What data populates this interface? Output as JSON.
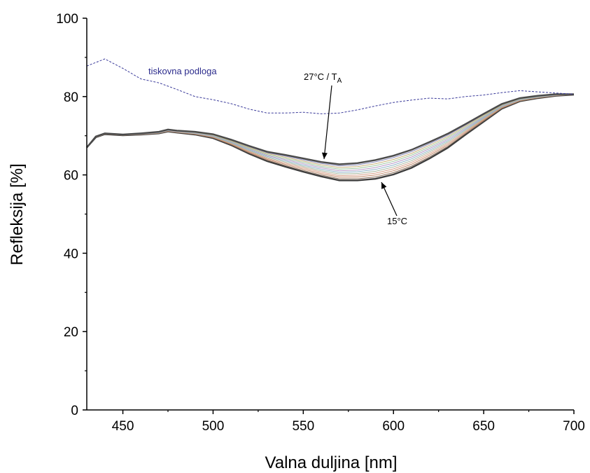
{
  "chart_data": {
    "type": "line",
    "xlabel": "Valna duljina [nm]",
    "ylabel": "Refleksija [%]",
    "xlim": [
      430,
      700
    ],
    "ylim": [
      0,
      100
    ],
    "xticks": [
      450,
      500,
      550,
      600,
      650,
      700
    ],
    "yticks": [
      0,
      20,
      40,
      60,
      80,
      100
    ],
    "grid": false,
    "colors": {
      "reference": "#3a3a9a",
      "band": [
        "#3d3d3d",
        "#8a6e5a",
        "#c48a6a",
        "#d7a08a",
        "#a6b8a0",
        "#8fb3c9",
        "#b79ac8",
        "#9fc7a2",
        "#c9b27a",
        "#8a8ab8",
        "#4a4a4a"
      ]
    },
    "reference_series": {
      "name": "tiskovna podloga",
      "style": "dashed",
      "x": [
        430,
        440,
        450,
        460,
        470,
        480,
        490,
        500,
        510,
        520,
        530,
        540,
        550,
        560,
        570,
        580,
        590,
        600,
        610,
        620,
        630,
        640,
        650,
        660,
        670,
        680,
        690,
        700
      ],
      "y": [
        87.8,
        89.6,
        87.2,
        84.5,
        83.5,
        81.8,
        80.0,
        79.2,
        78.2,
        76.8,
        75.8,
        75.8,
        76.0,
        75.6,
        75.8,
        76.6,
        77.6,
        78.5,
        79.1,
        79.6,
        79.4,
        80.0,
        80.4,
        81.0,
        81.5,
        81.2,
        80.9,
        80.6
      ]
    },
    "curve_band": {
      "x": [
        430,
        435,
        440,
        450,
        460,
        470,
        475,
        480,
        490,
        500,
        510,
        520,
        530,
        540,
        550,
        560,
        570,
        580,
        590,
        600,
        610,
        620,
        630,
        640,
        650,
        660,
        670,
        680,
        690,
        700
      ],
      "upper": [
        67.0,
        69.8,
        70.6,
        70.3,
        70.6,
        71.0,
        71.6,
        71.3,
        71.0,
        70.4,
        69.0,
        67.4,
        65.9,
        65.1,
        64.2,
        63.3,
        62.7,
        63.0,
        63.8,
        64.9,
        66.4,
        68.4,
        70.5,
        73.0,
        75.6,
        78.1,
        79.6,
        80.2,
        80.6,
        80.6
      ],
      "lower": [
        67.0,
        69.6,
        70.4,
        70.1,
        70.3,
        70.6,
        71.1,
        70.8,
        70.3,
        69.4,
        67.6,
        65.4,
        63.5,
        62.1,
        60.8,
        59.6,
        58.6,
        58.6,
        59.0,
        60.1,
        61.8,
        64.2,
        66.9,
        70.3,
        73.6,
        76.9,
        78.8,
        79.6,
        80.2,
        80.5
      ],
      "count": 11
    },
    "annotations": {
      "upper_label": "27°C / T",
      "upper_subscript": "A",
      "lower_label": "15°C",
      "reference_label": "tiskovna podloga"
    }
  }
}
